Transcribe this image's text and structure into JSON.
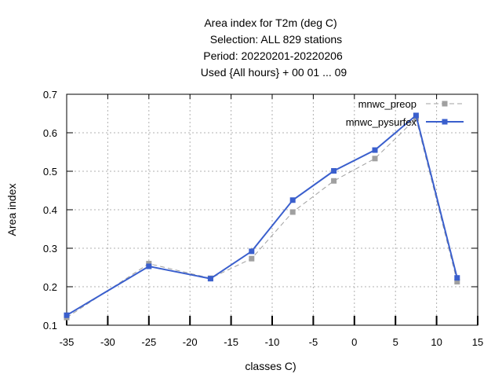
{
  "chart_data": {
    "type": "line",
    "title": [
      "Area index  for T2m (deg C)",
      "Selection: ALL    829 stations",
      "Period: 20220201-20220206",
      "Used {All hours} + 00 01 ... 09"
    ],
    "xlabel": "classes C)",
    "ylabel": "Area index",
    "xlim": [
      -35,
      15
    ],
    "ylim": [
      0.1,
      0.7
    ],
    "xticks": [
      -35,
      -30,
      -25,
      -20,
      -15,
      -10,
      -5,
      0,
      5,
      10,
      15
    ],
    "yticks": [
      0.1,
      0.2,
      0.3,
      0.4,
      0.5,
      0.6,
      0.7
    ],
    "xtick_labels": [
      "-35",
      "-30",
      "-25",
      "-20",
      "-15",
      "-10",
      "-5",
      "0",
      "5",
      "10",
      "15"
    ],
    "ytick_labels": [
      "0.1",
      "0.2",
      "0.3",
      "0.4",
      "0.5",
      "0.6",
      "0.7"
    ],
    "grid": true,
    "legend_position": "top-right",
    "series": [
      {
        "name": "mnwc_preop",
        "color": "#a0a0a0",
        "style": "dashed",
        "x": [
          -35,
          -25,
          -17.5,
          -12.5,
          -7.5,
          -2.5,
          2.5,
          7.5,
          12.5
        ],
        "y": [
          0.12,
          0.26,
          0.222,
          0.273,
          0.394,
          0.475,
          0.533,
          0.637,
          0.213
        ]
      },
      {
        "name": "mnwc_pysurfex",
        "color": "#3a5fcd",
        "style": "solid",
        "x": [
          -35,
          -25,
          -17.5,
          -12.5,
          -7.5,
          -2.5,
          2.5,
          7.5,
          12.5
        ],
        "y": [
          0.126,
          0.253,
          0.221,
          0.292,
          0.425,
          0.501,
          0.555,
          0.645,
          0.223
        ]
      }
    ]
  }
}
